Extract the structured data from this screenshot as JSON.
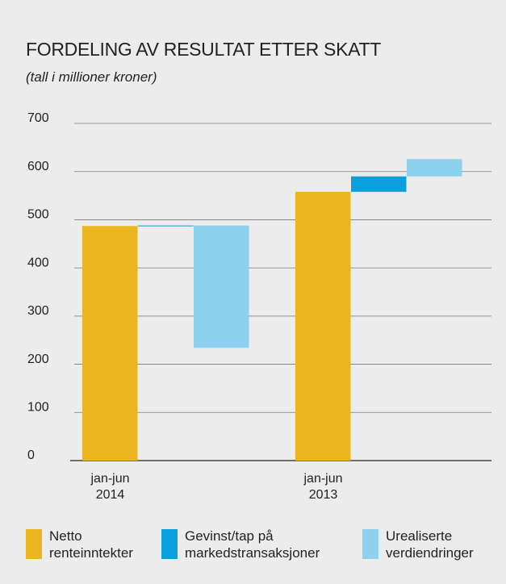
{
  "chart_data": {
    "type": "waterfall",
    "title": "FORDELING AV RESULTAT ETTER SKATT",
    "subtitle": "(tall i millioner kroner)",
    "categories": [
      "jan-jun 2014",
      "jan-jun 2013"
    ],
    "series": [
      {
        "name": "Netto renteinntekter",
        "color": "#ebb520",
        "values": [
          487,
          558
        ]
      },
      {
        "name": "Gevinst/tap på markedstransaksjoner",
        "color": "#089fdc",
        "values": [
          1,
          32
        ]
      },
      {
        "name": "Urealiserte verdiendringer",
        "color": "#8ed1ef",
        "values": [
          -254,
          36
        ]
      }
    ],
    "ylim": [
      0,
      700
    ],
    "yticks": [
      0,
      100,
      200,
      300,
      400,
      500,
      600,
      700
    ],
    "grid": true
  }
}
